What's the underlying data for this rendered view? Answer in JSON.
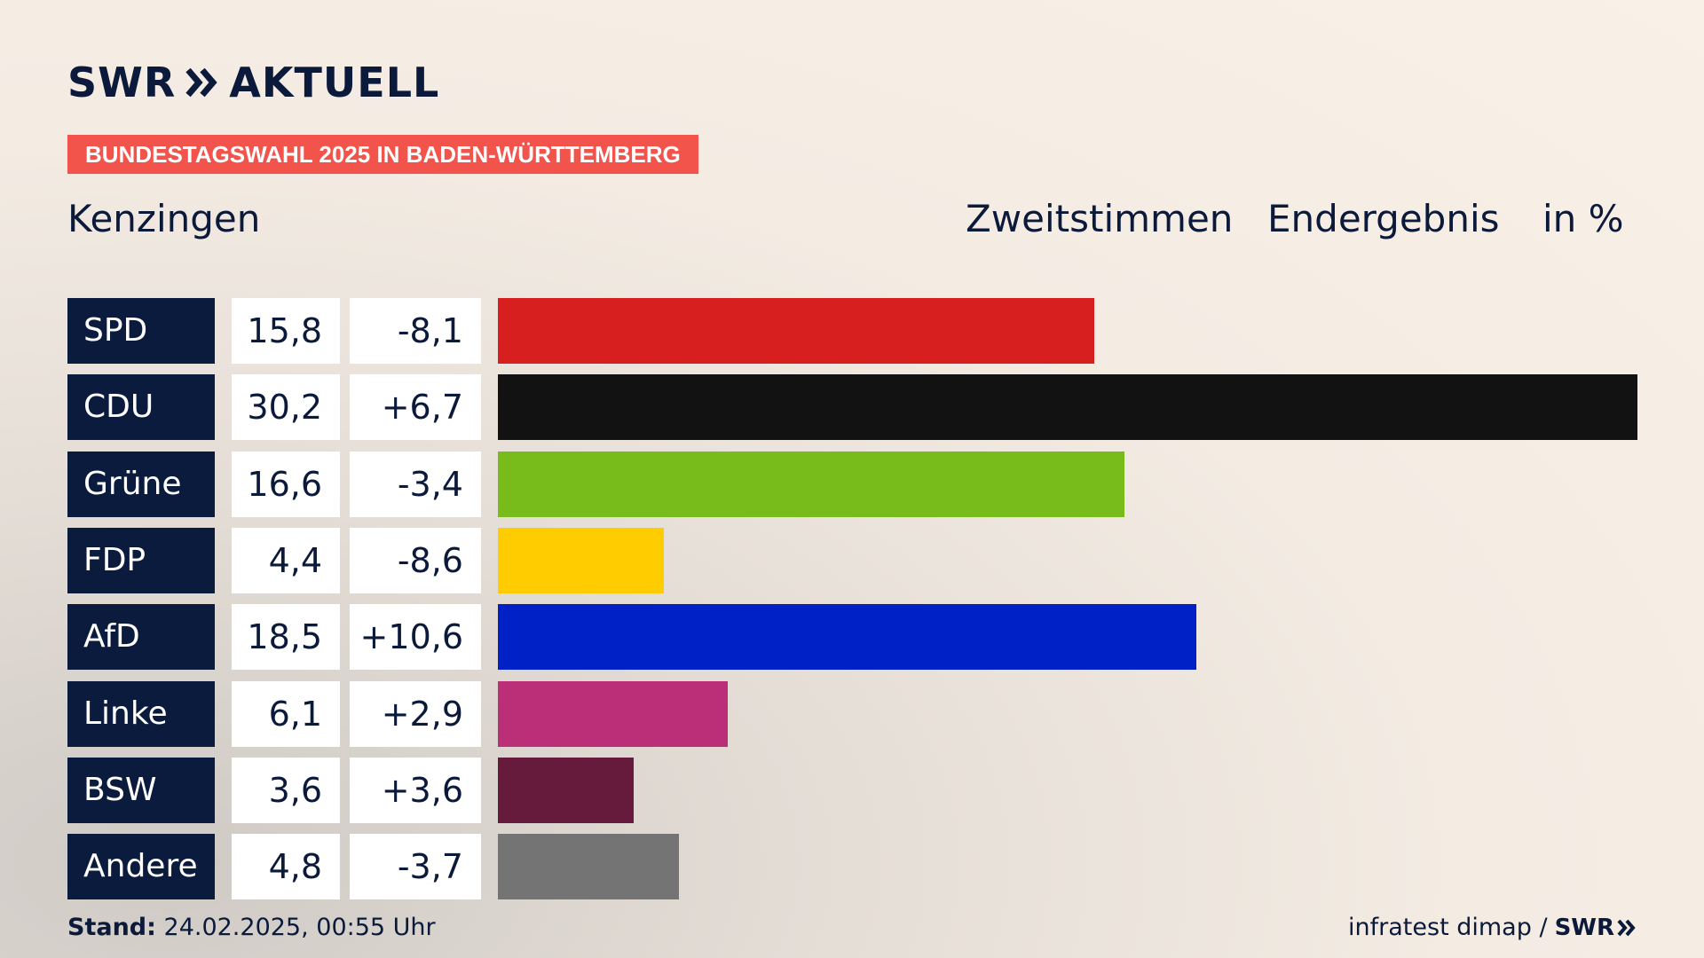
{
  "brand": {
    "logo_text_left": "SWR",
    "logo_text_right": "AKTUELL",
    "color": "#0b1a3a"
  },
  "tag": {
    "label": "BUNDESTAGSWAHL 2025 IN BADEN-WÜRTTEMBERG",
    "color": "#f2544c"
  },
  "place": "Kenzingen",
  "headers": {
    "vote_type": "Zweitstimmen",
    "status": "Endergebnis",
    "unit": "in %"
  },
  "footer": {
    "stand_label": "Stand:",
    "stand_value": "24.02.2025, 00:55 Uhr",
    "source": "infratest dimap /",
    "source_brand": "SWR"
  },
  "chart_data": {
    "type": "bar",
    "orientation": "horizontal",
    "categories": [
      "SPD",
      "CDU",
      "Grüne",
      "FDP",
      "AfD",
      "Linke",
      "BSW",
      "Andere"
    ],
    "values": [
      15.8,
      30.2,
      16.6,
      4.4,
      18.5,
      6.1,
      3.6,
      4.8
    ],
    "value_labels": [
      "15,8",
      "30,2",
      "16,6",
      "4,4",
      "18,5",
      "6,1",
      "3,6",
      "4,8"
    ],
    "diff_labels": [
      "-8,1",
      "+6,7",
      "-3,4",
      "-8,6",
      "+10,6",
      "+2,9",
      "+3,6",
      "-3,7"
    ],
    "colors": [
      "#d81f20",
      "#121212",
      "#78bc1c",
      "#ffcc00",
      "#0021c6",
      "#bb2f78",
      "#661a3c",
      "#747474"
    ],
    "xlim": [
      0,
      30.2
    ],
    "grid": false,
    "legend": "none"
  }
}
